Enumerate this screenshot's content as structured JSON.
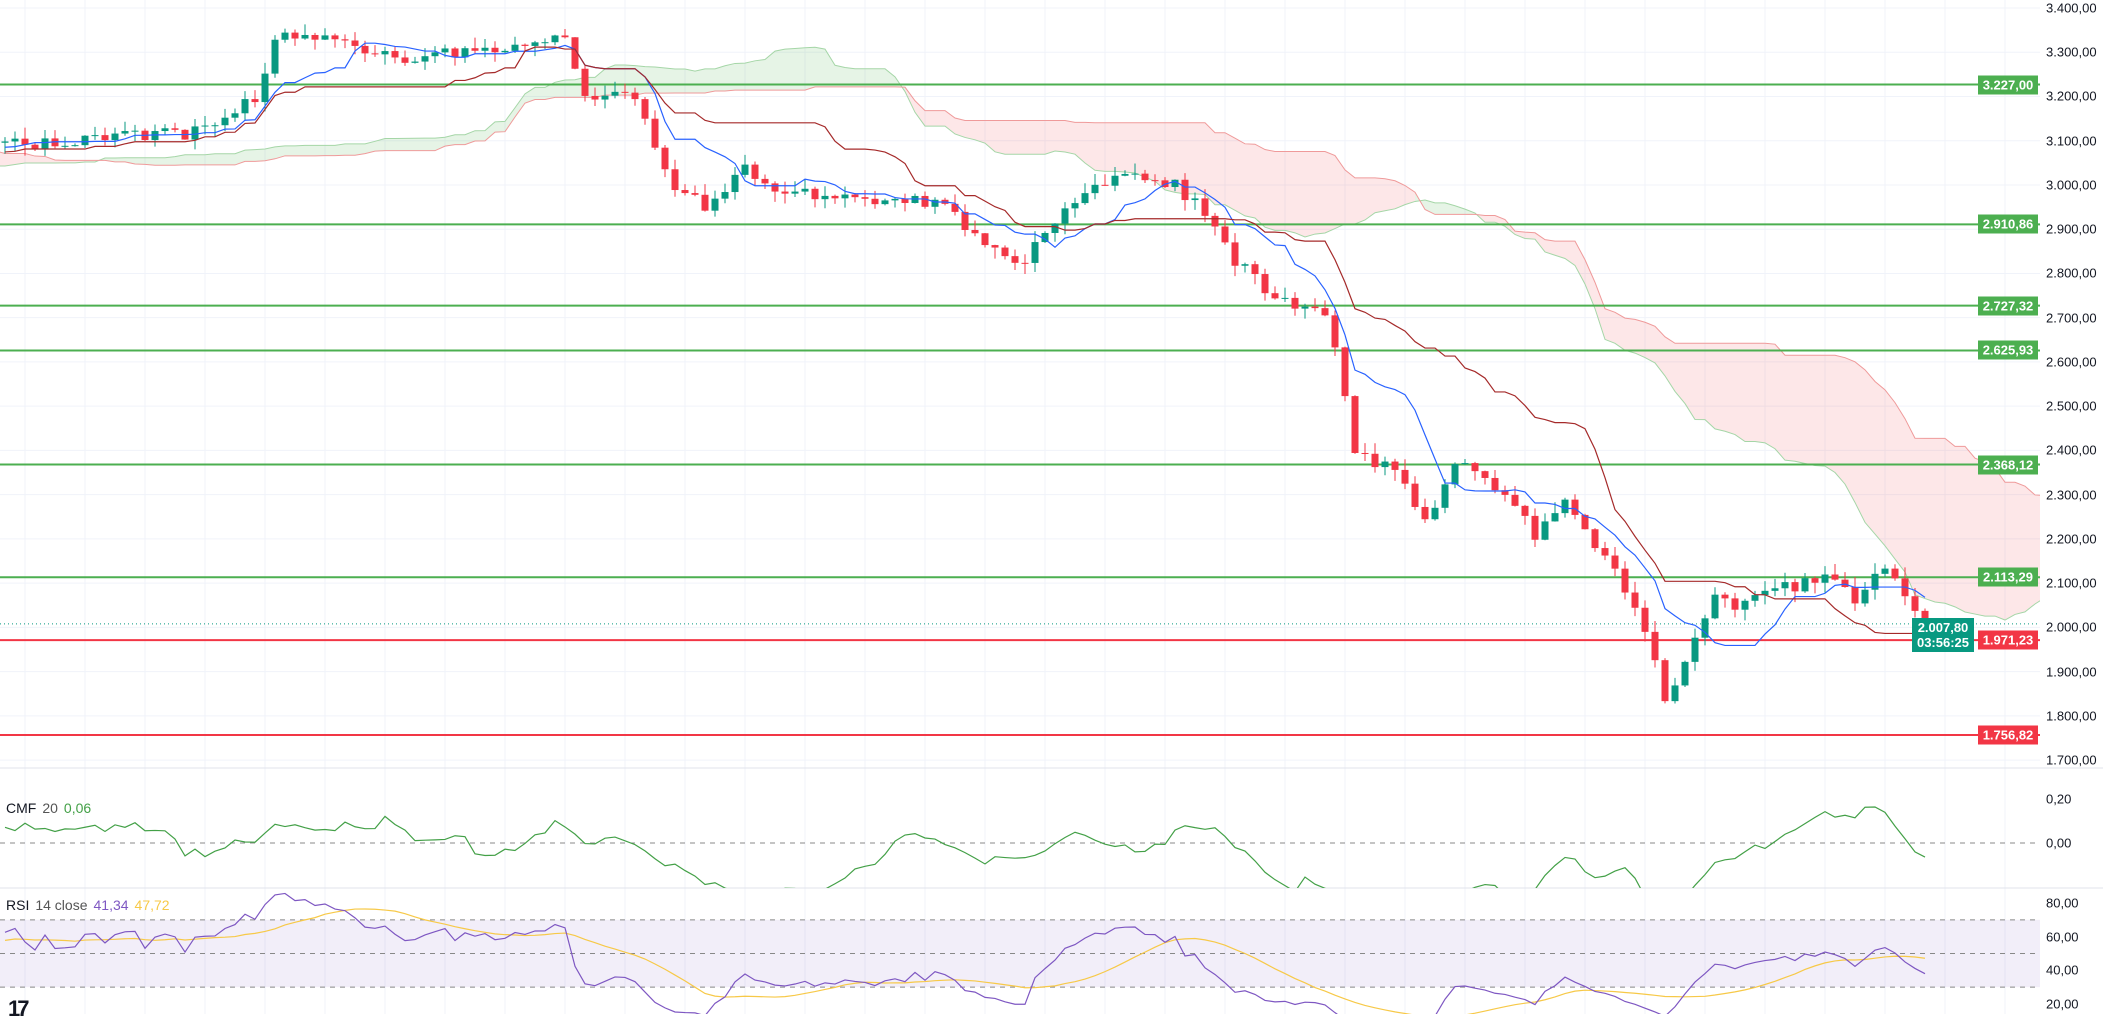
{
  "colors": {
    "up": "#089981",
    "down": "#f23645",
    "tenkan": "#2962ff",
    "kijun": "#a52a2a",
    "support": "#4caf50",
    "resistance_red": "#f23645",
    "rsi": "#7e57c2",
    "rsi_ma": "#f7c948",
    "cmf": "#43a047"
  },
  "price_axis": {
    "ticks": [
      "3.400,00",
      "3.300,00",
      "3.200,00",
      "3.100,00",
      "3.000,00",
      "2.900,00",
      "2.800,00",
      "2.700,00",
      "2.600,00",
      "2.500,00",
      "2.400,00",
      "2.300,00",
      "2.200,00",
      "2.100,00",
      "2.000,00",
      "1.900,00",
      "1.800,00",
      "1.700,00"
    ],
    "tick_values": [
      3400,
      3300,
      3200,
      3100,
      3000,
      2900,
      2800,
      2700,
      2600,
      2500,
      2400,
      2300,
      2200,
      2100,
      2000,
      1900,
      1800,
      1700
    ]
  },
  "levels": [
    {
      "value": 3227.0,
      "label": "3.227,00",
      "type": "green"
    },
    {
      "value": 2910.86,
      "label": "2.910,86",
      "type": "green"
    },
    {
      "value": 2727.32,
      "label": "2.727,32",
      "type": "green"
    },
    {
      "value": 2625.93,
      "label": "2.625,93",
      "type": "green"
    },
    {
      "value": 2368.12,
      "label": "2.368,12",
      "type": "green"
    },
    {
      "value": 2113.29,
      "label": "2.113,29",
      "type": "green"
    },
    {
      "value": 1971.23,
      "label": "1.971,23",
      "type": "red"
    },
    {
      "value": 1756.82,
      "label": "1.756,82",
      "type": "red"
    }
  ],
  "current_price": {
    "value": 2007.8,
    "label": "2.007,80",
    "countdown": "03:56:25"
  },
  "cmf": {
    "name": "CMF",
    "period": "20",
    "value": "0,06",
    "ticks": [
      "0,20",
      "0,00"
    ],
    "tick_values": [
      0.2,
      0
    ]
  },
  "rsi": {
    "name": "RSI",
    "params": "14 close",
    "value": "41,34",
    "ma_value": "47,72",
    "ticks": [
      "80,00",
      "60,00",
      "40,00",
      "20,00"
    ],
    "tick_values": [
      80,
      60,
      40,
      20
    ]
  },
  "logo": "TV",
  "chart_data": {
    "type": "candlestick",
    "title": "",
    "ylim": [
      1700,
      3400
    ],
    "close_keypoints": [
      [
        0,
        3090
      ],
      [
        20,
        3120
      ],
      [
        25,
        3200
      ],
      [
        27,
        3330
      ],
      [
        32,
        3330
      ],
      [
        40,
        3290
      ],
      [
        48,
        3300
      ],
      [
        56,
        3340
      ],
      [
        58,
        3210
      ],
      [
        63,
        3200
      ],
      [
        67,
        2990
      ],
      [
        70,
        2950
      ],
      [
        74,
        3040
      ],
      [
        78,
        2980
      ],
      [
        86,
        2970
      ],
      [
        94,
        2960
      ],
      [
        98,
        2860
      ],
      [
        102,
        2830
      ],
      [
        106,
        2940
      ],
      [
        111,
        3030
      ],
      [
        117,
        3000
      ],
      [
        121,
        2920
      ],
      [
        123,
        2830
      ],
      [
        127,
        2740
      ],
      [
        132,
        2720
      ],
      [
        134,
        2530
      ],
      [
        135,
        2390
      ],
      [
        139,
        2350
      ],
      [
        142,
        2230
      ],
      [
        145,
        2370
      ],
      [
        150,
        2310
      ],
      [
        153,
        2210
      ],
      [
        156,
        2280
      ],
      [
        161,
        2130
      ],
      [
        164,
        2000
      ],
      [
        166,
        1830
      ],
      [
        168,
        1920
      ],
      [
        171,
        2060
      ],
      [
        174,
        2050
      ],
      [
        178,
        2090
      ],
      [
        182,
        2110
      ],
      [
        185,
        2060
      ],
      [
        188,
        2140
      ],
      [
        190,
        2080
      ],
      [
        192,
        2007.8
      ]
    ],
    "indicators": [
      "Ichimoku Cloud",
      "CMF 20",
      "RSI 14 close"
    ]
  }
}
